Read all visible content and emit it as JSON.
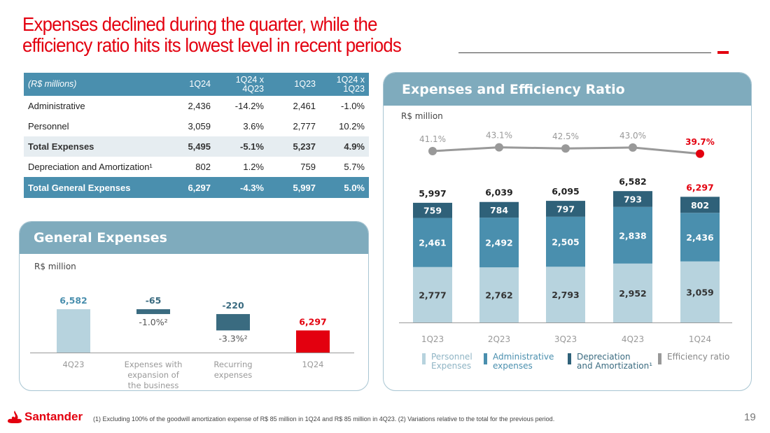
{
  "title": {
    "line1": "Expenses declined during the quarter, while the",
    "line2": "efficiency ratio hits its lowest level in recent periods"
  },
  "colors": {
    "brand_red": "#e3000f",
    "table_header": "#4a8fae",
    "panel_header": "#7fabbd",
    "personnel": "#b7d3de",
    "administrative": "#4a8fae",
    "depreciation": "#2f6179",
    "efficiency_line": "#999999"
  },
  "table": {
    "headers": [
      "(R$ millions)",
      "1Q24",
      "1Q24 x 4Q23",
      "1Q23",
      "1Q24 x 1Q23"
    ],
    "header_lines": [
      [
        "(R$ millions)"
      ],
      [
        "1Q24"
      ],
      [
        "1Q24 x",
        "4Q23"
      ],
      [
        "1Q23"
      ],
      [
        "1Q24 x",
        "1Q23"
      ]
    ],
    "rows": [
      {
        "label": "Administrative",
        "q1_24": "2,436",
        "var_4q23": "-14.2%",
        "q1_23": "2,461",
        "var_1q23": "-1.0%",
        "style": "normal"
      },
      {
        "label": "Personnel",
        "q1_24": "3,059",
        "var_4q23": "3.6%",
        "q1_23": "2,777",
        "var_1q23": "10.2%",
        "style": "normal"
      },
      {
        "label": "Total Expenses",
        "q1_24": "5,495",
        "var_4q23": "-5.1%",
        "q1_23": "5,237",
        "var_1q23": "4.9%",
        "style": "shade"
      },
      {
        "label": "Depreciation and Amortization¹",
        "q1_24": "802",
        "var_4q23": "1.2%",
        "q1_23": "759",
        "var_1q23": "5.7%",
        "style": "normal"
      },
      {
        "label": "Total General Expenses",
        "q1_24": "6,297",
        "var_4q23": "-4.3%",
        "q1_23": "5,997",
        "var_1q23": "5.0%",
        "style": "total"
      }
    ]
  },
  "general_expenses": {
    "title": "General Expenses",
    "unit": "R$ million"
  },
  "efficiency_panel": {
    "title": "Expenses and Efficiency Ratio",
    "unit": "R$ million"
  },
  "chart_data": [
    {
      "type": "bar",
      "subtype": "waterfall",
      "title": "General Expenses",
      "ylabel": "R$ million",
      "categories": [
        "4Q23",
        "Expenses with expansion of the business",
        "Recurring expenses",
        "1Q24"
      ],
      "category_lines": [
        [
          "4Q23"
        ],
        [
          "Expenses with",
          "expansion of",
          "the business"
        ],
        [
          "Recurring",
          "expenses"
        ],
        [
          "1Q24"
        ]
      ],
      "values": [
        6582,
        -65,
        -220,
        6297
      ],
      "value_labels": [
        "6,582",
        "-65",
        "-220",
        "6,297"
      ],
      "pct_labels": [
        "",
        "-1.0%²",
        "-3.3%²",
        ""
      ],
      "kinds": [
        "total",
        "delta",
        "delta",
        "total"
      ],
      "bar_colors": [
        "#b7d3de",
        "#3a6b80",
        "#3a6b80",
        "#e3000f"
      ],
      "label_colors": [
        "#4a8fae",
        "#3a6b80",
        "#3a6b80",
        "#e3000f"
      ],
      "ylim": [
        6000,
        6620
      ]
    },
    {
      "type": "bar",
      "subtype": "stacked_with_line",
      "title": "Expenses and Efficiency Ratio",
      "ylabel": "R$ million",
      "categories": [
        "1Q23",
        "2Q23",
        "3Q23",
        "4Q23",
        "1Q24"
      ],
      "series": [
        {
          "name": "Personnel Expenses",
          "color": "#b7d3de",
          "values": [
            2777,
            2762,
            2793,
            2952,
            3059
          ],
          "labels": [
            "2,777",
            "2,762",
            "2,793",
            "2,952",
            "3,059"
          ]
        },
        {
          "name": "Administrative expenses",
          "color": "#4a8fae",
          "values": [
            2461,
            2492,
            2505,
            2838,
            2436
          ],
          "labels": [
            "2,461",
            "2,492",
            "2,505",
            "2,838",
            "2,436"
          ]
        },
        {
          "name": "Depreciation and Amortization¹",
          "color": "#2f6179",
          "values": [
            759,
            784,
            797,
            793,
            802
          ],
          "labels": [
            "759",
            "784",
            "797",
            "793",
            "802"
          ]
        }
      ],
      "totals": [
        5997,
        6039,
        6095,
        6582,
        6297
      ],
      "total_labels": [
        "5,997",
        "6,039",
        "6,095",
        "6,582",
        "6,297"
      ],
      "line": {
        "name": "Efficiency ratio",
        "color": "#999999",
        "values": [
          41.1,
          43.1,
          42.5,
          43.0,
          39.7
        ],
        "labels": [
          "41.1%",
          "43.1%",
          "42.5%",
          "43.0%",
          "39.7%"
        ],
        "highlight_last_color": "#e3000f"
      },
      "legend": [
        {
          "label_lines": [
            "Personnel",
            "Expenses"
          ],
          "color": "#b7d3de",
          "text_color": "#8fb4c4"
        },
        {
          "label_lines": [
            "Administrative",
            "expenses"
          ],
          "color": "#4a8fae",
          "text_color": "#4a8fae"
        },
        {
          "label_lines": [
            "Depreciation",
            "and Amortization¹"
          ],
          "color": "#2f6179",
          "text_color": "#3a6b80"
        },
        {
          "label_lines": [
            "Efficiency ratio"
          ],
          "color": "#999999",
          "text_color": "#888888"
        }
      ],
      "legend_position": "bottom",
      "ylim": [
        0,
        7000
      ]
    }
  ],
  "footer": {
    "brand": "Santander",
    "note": "(1) Excluding 100% of the goodwill amortization expense of  R$ 85 million in 1Q24 and R$ 85 million in 4Q23. (2) Variations relative to the total for the previous period.",
    "page_number": "19"
  }
}
